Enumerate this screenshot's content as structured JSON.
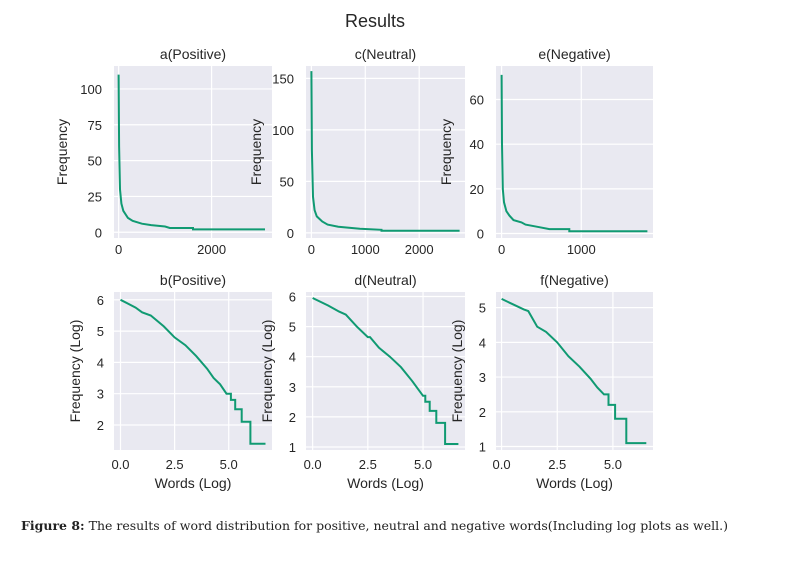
{
  "suptitle": "Results",
  "caption": {
    "label": "Figure 8:",
    "text": " The results of word distribution for positive, neutral and negative words(Including log plots as well.)"
  },
  "colors": {
    "line": "#109a72",
    "panel_bg": "#e9e9f1",
    "grid": "#ffffff"
  },
  "chart_data": [
    {
      "type": "line",
      "title": "a(Positive)",
      "xlabel": "",
      "ylabel": "Frequency",
      "xlim": [
        -100,
        3300
      ],
      "ylim": [
        -4,
        116
      ],
      "xticks": [
        0,
        2000
      ],
      "yticks": [
        0,
        25,
        50,
        75,
        100
      ],
      "grid": true,
      "points": [
        [
          0,
          110
        ],
        [
          10,
          60
        ],
        [
          30,
          30
        ],
        [
          60,
          20
        ],
        [
          100,
          15
        ],
        [
          200,
          10
        ],
        [
          300,
          8
        ],
        [
          500,
          6
        ],
        [
          700,
          5
        ],
        [
          1000,
          4
        ],
        [
          1100,
          3
        ],
        [
          1600,
          3
        ],
        [
          1600,
          2
        ],
        [
          3150,
          2
        ]
      ]
    },
    {
      "type": "line",
      "title": "c(Neutral)",
      "xlabel": "",
      "ylabel": "Frequency",
      "xlim": [
        -100,
        2850
      ],
      "ylim": [
        -5,
        162
      ],
      "xticks": [
        0,
        1000,
        2000
      ],
      "yticks": [
        0,
        50,
        100,
        150
      ],
      "grid": true,
      "points": [
        [
          0,
          157
        ],
        [
          10,
          80
        ],
        [
          30,
          35
        ],
        [
          60,
          22
        ],
        [
          100,
          16
        ],
        [
          200,
          11
        ],
        [
          300,
          8
        ],
        [
          500,
          6
        ],
        [
          700,
          5
        ],
        [
          900,
          4
        ],
        [
          1300,
          3
        ],
        [
          1300,
          2
        ],
        [
          2750,
          2
        ]
      ]
    },
    {
      "type": "line",
      "title": "e(Negative)",
      "xlabel": "",
      "ylabel": "Frequency",
      "xlim": [
        -70,
        1900
      ],
      "ylim": [
        -2,
        75
      ],
      "xticks": [
        0,
        1000
      ],
      "yticks": [
        0,
        20,
        40,
        60
      ],
      "grid": true,
      "points": [
        [
          0,
          71
        ],
        [
          5,
          40
        ],
        [
          15,
          20
        ],
        [
          30,
          14
        ],
        [
          60,
          10
        ],
        [
          100,
          8
        ],
        [
          150,
          6
        ],
        [
          250,
          5
        ],
        [
          300,
          4
        ],
        [
          450,
          3
        ],
        [
          600,
          2
        ],
        [
          850,
          2
        ],
        [
          850,
          1
        ],
        [
          1830,
          1
        ]
      ]
    },
    {
      "type": "line",
      "title": "b(Positive)",
      "xlabel": "Words (Log)",
      "ylabel": "Frequency (Log)",
      "xlim": [
        -0.3,
        7.0
      ],
      "ylim": [
        1.2,
        6.25
      ],
      "xticks": [
        0.0,
        2.5,
        5.0
      ],
      "yticks": [
        2,
        3,
        4,
        5,
        6
      ],
      "xtick_labels": [
        "0.0",
        "2.5",
        "5.0"
      ],
      "grid": true,
      "points": [
        [
          0,
          6
        ],
        [
          0.7,
          5.75
        ],
        [
          1,
          5.6
        ],
        [
          1.4,
          5.5
        ],
        [
          2,
          5.15
        ],
        [
          2.5,
          4.8
        ],
        [
          3,
          4.55
        ],
        [
          3.5,
          4.2
        ],
        [
          4,
          3.8
        ],
        [
          4.3,
          3.5
        ],
        [
          4.6,
          3.3
        ],
        [
          4.9,
          3.0
        ],
        [
          5.1,
          3.0
        ],
        [
          5.1,
          2.8
        ],
        [
          5.3,
          2.8
        ],
        [
          5.3,
          2.5
        ],
        [
          5.6,
          2.5
        ],
        [
          5.6,
          2.1
        ],
        [
          6.0,
          2.1
        ],
        [
          6.0,
          1.4
        ],
        [
          6.7,
          1.4
        ]
      ]
    },
    {
      "type": "line",
      "title": "d(Neutral)",
      "xlabel": "Words (Log)",
      "ylabel": "Frequency (Log)",
      "xlim": [
        -0.3,
        6.9
      ],
      "ylim": [
        0.9,
        6.15
      ],
      "xticks": [
        0.0,
        2.5,
        5.0
      ],
      "yticks": [
        1,
        2,
        3,
        4,
        5,
        6
      ],
      "xtick_labels": [
        "0.0",
        "2.5",
        "5.0"
      ],
      "grid": true,
      "points": [
        [
          0,
          5.95
        ],
        [
          0.7,
          5.7
        ],
        [
          1.2,
          5.5
        ],
        [
          1.5,
          5.4
        ],
        [
          2,
          5.0
        ],
        [
          2.5,
          4.65
        ],
        [
          2.6,
          4.65
        ],
        [
          3,
          4.3
        ],
        [
          3.5,
          4.0
        ],
        [
          4,
          3.65
        ],
        [
          4.5,
          3.2
        ],
        [
          4.8,
          2.9
        ],
        [
          5.0,
          2.7
        ],
        [
          5.1,
          2.7
        ],
        [
          5.1,
          2.5
        ],
        [
          5.3,
          2.5
        ],
        [
          5.3,
          2.2
        ],
        [
          5.6,
          2.2
        ],
        [
          5.6,
          1.8
        ],
        [
          6.0,
          1.8
        ],
        [
          6.0,
          1.1
        ],
        [
          6.6,
          1.1
        ]
      ]
    },
    {
      "type": "line",
      "title": "f(Negative)",
      "xlabel": "Words (Log)",
      "ylabel": "Frequency (Log)",
      "xlim": [
        -0.25,
        6.8
      ],
      "ylim": [
        0.9,
        5.45
      ],
      "xticks": [
        0.0,
        2.5,
        5.0
      ],
      "yticks": [
        1,
        2,
        3,
        4,
        5
      ],
      "xtick_labels": [
        "0.0",
        "2.5",
        "5.0"
      ],
      "grid": true,
      "points": [
        [
          0,
          5.25
        ],
        [
          0.5,
          5.1
        ],
        [
          1,
          4.95
        ],
        [
          1.2,
          4.9
        ],
        [
          1.6,
          4.45
        ],
        [
          2,
          4.3
        ],
        [
          2.5,
          4.0
        ],
        [
          3,
          3.6
        ],
        [
          3.5,
          3.3
        ],
        [
          4,
          2.95
        ],
        [
          4.3,
          2.7
        ],
        [
          4.6,
          2.5
        ],
        [
          4.8,
          2.5
        ],
        [
          4.8,
          2.2
        ],
        [
          5.1,
          2.2
        ],
        [
          5.1,
          1.8
        ],
        [
          5.6,
          1.8
        ],
        [
          5.6,
          1.1
        ],
        [
          6.5,
          1.1
        ]
      ]
    }
  ]
}
